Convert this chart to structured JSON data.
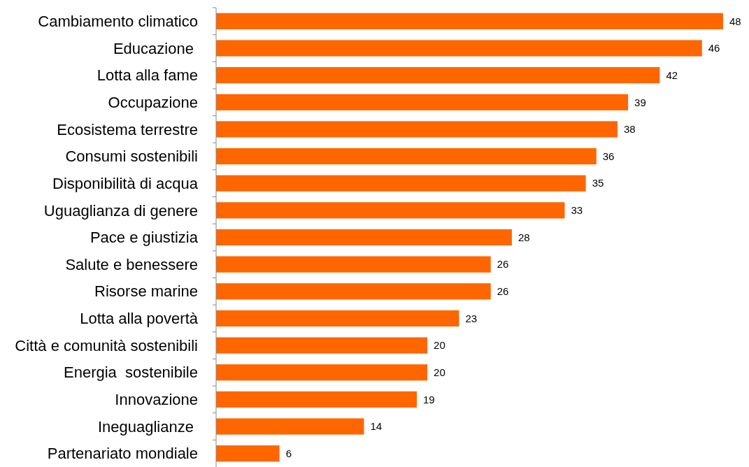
{
  "chart_data": {
    "type": "bar",
    "orientation": "horizontal",
    "categories": [
      "Cambiamento climatico",
      "Educazione ",
      "Lotta alla fame",
      "Occupazione",
      "Ecosistema terrestre",
      "Consumi sostenibili",
      "Disponibilità di acqua",
      "Uguaglianza di genere",
      "Pace e giustizia",
      "Salute e benessere",
      "Risorse marine",
      "Lotta alla povertà",
      "Città e comunità sostenibili",
      "Energia  sostenibile",
      "Innovazione",
      "Ineguaglianze ",
      "Partenariato mondiale"
    ],
    "values": [
      48,
      46,
      42,
      39,
      38,
      36,
      35,
      33,
      28,
      26,
      26,
      23,
      20,
      20,
      19,
      14,
      6
    ],
    "color": "#ff6600",
    "data_labels": true
  }
}
